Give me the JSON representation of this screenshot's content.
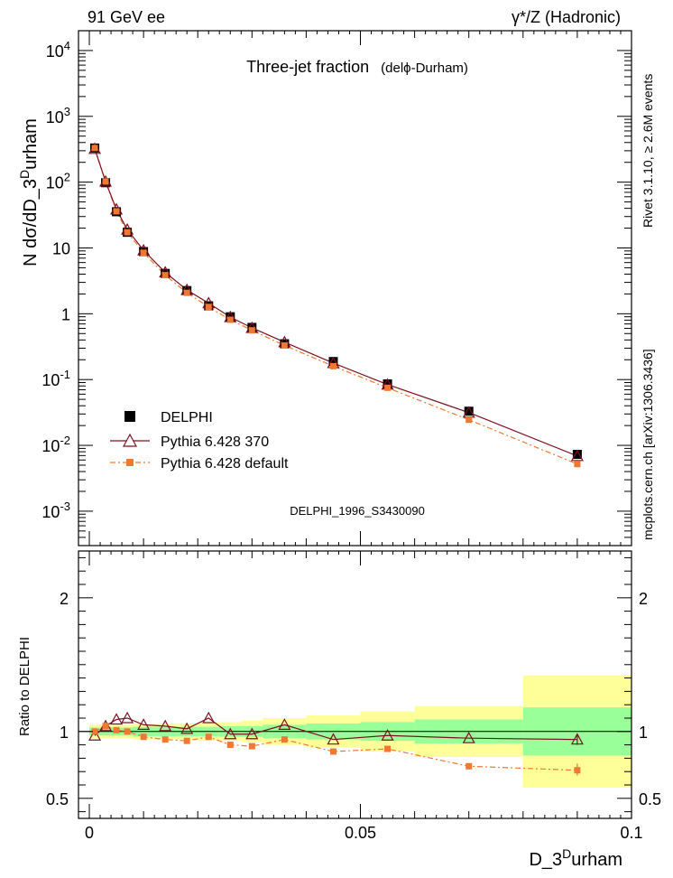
{
  "header": {
    "left": "91 GeV ee",
    "right": "γ*/Z (Hadronic)"
  },
  "side_labels": {
    "upper": "Rivet 3.1.10, ≥ 2.6M events",
    "lower": "mcplots.cern.ch [arXiv:1306.3436]"
  },
  "chart_data": {
    "type": "line",
    "title": "Three-jet fraction",
    "subtitle": "(delϕ-Durham)",
    "watermark": "DELPHI_1996_S3430090",
    "xlabel": "D_3^Durham",
    "ylabel": "N dσ/dD_3^Durham",
    "ratio_ylabel": "Ratio to DELPHI",
    "xlim": [
      -0.002,
      0.1
    ],
    "ylim": [
      0.0003,
      20000
    ],
    "ratio_ylim": [
      0.35,
      2.35
    ],
    "yscale": "log",
    "x_ticks": [
      0,
      0.05,
      0.1
    ],
    "x_tick_labels": [
      "0",
      "0.05",
      "0.1"
    ],
    "y_ticks": [
      {
        "value": 0.001,
        "mantissa": "10",
        "exp": "-3"
      },
      {
        "value": 0.01,
        "mantissa": "10",
        "exp": "-2"
      },
      {
        "value": 0.1,
        "mantissa": "10",
        "exp": "-1"
      },
      {
        "value": 1,
        "mantissa": "1",
        "exp": ""
      },
      {
        "value": 10,
        "mantissa": "10",
        "exp": ""
      },
      {
        "value": 100,
        "mantissa": "10",
        "exp": "2"
      },
      {
        "value": 1000,
        "mantissa": "10",
        "exp": "3"
      },
      {
        "value": 10000,
        "mantissa": "10",
        "exp": "4"
      }
    ],
    "ratio_ticks": [
      0.5,
      1,
      2
    ],
    "ratio_tick_labels": [
      "0.5",
      "1",
      "2"
    ],
    "legend_position": "lower-left",
    "x": [
      0.001,
      0.003,
      0.005,
      0.007,
      0.01,
      0.014,
      0.018,
      0.022,
      0.026,
      0.03,
      0.036,
      0.045,
      0.055,
      0.07,
      0.09
    ],
    "bin_edges": [
      0,
      0.002,
      0.004,
      0.006,
      0.008,
      0.012,
      0.016,
      0.02,
      0.024,
      0.028,
      0.032,
      0.04,
      0.05,
      0.06,
      0.08,
      0.1
    ],
    "series": [
      {
        "name": "DELPHI",
        "color": "#000000",
        "values": [
          330,
          98,
          35.5,
          17.3,
          8.8,
          4.1,
          2.25,
          1.32,
          0.9,
          0.62,
          0.35,
          0.188,
          0.086,
          0.033,
          0.0073
        ]
      },
      {
        "name": "Pythia 6.428 370",
        "color": "#7b1020",
        "values": [
          320,
          102,
          38.5,
          19,
          9.2,
          4.25,
          2.3,
          1.45,
          0.89,
          0.61,
          0.37,
          0.178,
          0.084,
          0.0315,
          0.0069
        ],
        "ratio": [
          0.97,
          1.04,
          1.09,
          1.1,
          1.05,
          1.04,
          1.02,
          1.1,
          0.98,
          0.98,
          1.05,
          0.94,
          0.97,
          0.95,
          0.94
        ]
      },
      {
        "name": "Pythia 6.428 default",
        "color": "#f07830",
        "values": [
          330,
          102,
          36,
          17.3,
          8.45,
          3.86,
          2.08,
          1.27,
          0.81,
          0.56,
          0.33,
          0.16,
          0.075,
          0.0245,
          0.0052
        ],
        "ratio": [
          1.0,
          1.04,
          1.01,
          1.0,
          0.96,
          0.94,
          0.93,
          0.96,
          0.9,
          0.89,
          0.94,
          0.85,
          0.87,
          0.74,
          0.71
        ]
      }
    ],
    "ratio_bands": {
      "inner_color": "#99ff99",
      "outer_color": "#ffff99",
      "inner": [
        0.03,
        0.03,
        0.03,
        0.03,
        0.035,
        0.035,
        0.035,
        0.035,
        0.04,
        0.04,
        0.05,
        0.06,
        0.07,
        0.09,
        0.18
      ],
      "outer": [
        0.05,
        0.05,
        0.05,
        0.05,
        0.06,
        0.06,
        0.06,
        0.07,
        0.07,
        0.08,
        0.1,
        0.12,
        0.15,
        0.19,
        0.42
      ]
    }
  }
}
